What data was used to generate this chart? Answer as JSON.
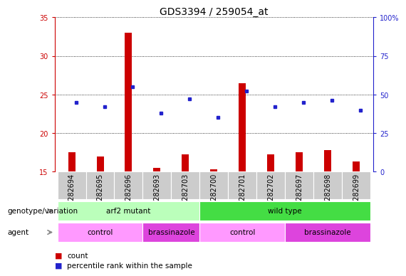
{
  "title": "GDS3394 / 259054_at",
  "samples": [
    "GSM282694",
    "GSM282695",
    "GSM282696",
    "GSM282693",
    "GSM282703",
    "GSM282700",
    "GSM282701",
    "GSM282702",
    "GSM282697",
    "GSM282698",
    "GSM282699"
  ],
  "red_values": [
    17.5,
    17.0,
    33.0,
    15.5,
    17.2,
    15.3,
    26.5,
    17.2,
    17.5,
    17.8,
    16.3
  ],
  "blue_values_pct": [
    45,
    42,
    55,
    38,
    47,
    35,
    52,
    42,
    45,
    46,
    40
  ],
  "ylim": [
    15,
    35
  ],
  "yticks": [
    15,
    20,
    25,
    30,
    35
  ],
  "right_yticks_pct": [
    0,
    25,
    50,
    75,
    100
  ],
  "right_ylabels": [
    "0",
    "25",
    "50",
    "75",
    "100%"
  ],
  "red_color": "#cc0000",
  "blue_color": "#2222cc",
  "genotype_groups": [
    {
      "label": "arf2 mutant",
      "start": 0,
      "end": 5,
      "color": "#bbffbb"
    },
    {
      "label": "wild type",
      "start": 5,
      "end": 11,
      "color": "#44dd44"
    }
  ],
  "agent_groups": [
    {
      "label": "control",
      "start": 0,
      "end": 3,
      "color": "#ff99ff"
    },
    {
      "label": "brassinazole",
      "start": 3,
      "end": 5,
      "color": "#dd44dd"
    },
    {
      "label": "control",
      "start": 5,
      "end": 8,
      "color": "#ff99ff"
    },
    {
      "label": "brassinazole",
      "start": 8,
      "end": 11,
      "color": "#dd44dd"
    }
  ],
  "title_fontsize": 10,
  "axis_fontsize": 7,
  "label_fontsize": 7.5,
  "row_label_fontsize": 7.5,
  "genotype_label": "genotype/variation",
  "agent_label": "agent",
  "tick_bg": "#cccccc",
  "bar_width": 0.25
}
